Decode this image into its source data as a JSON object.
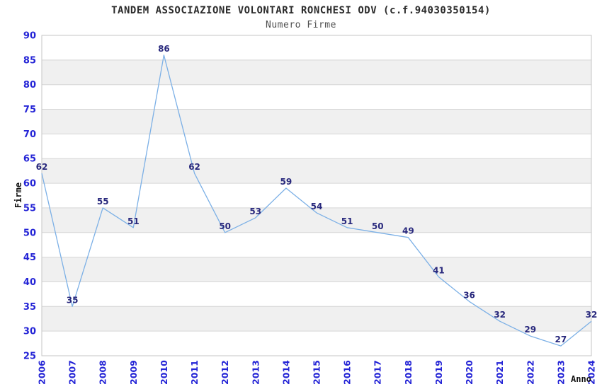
{
  "chart_data": {
    "type": "line",
    "title": "TANDEM ASSOCIAZIONE VOLONTARI RONCHESI ODV (c.f.94030350154)",
    "subtitle": "Numero Firme",
    "xlabel": "Anno",
    "ylabel": "Firme",
    "categories": [
      "2006",
      "2007",
      "2008",
      "2009",
      "2010",
      "2011",
      "2012",
      "2013",
      "2014",
      "2015",
      "2016",
      "2017",
      "2018",
      "2019",
      "2020",
      "2021",
      "2022",
      "2023",
      "2024"
    ],
    "values": [
      62,
      35,
      55,
      51,
      86,
      62,
      50,
      53,
      59,
      54,
      51,
      50,
      49,
      41,
      36,
      32,
      29,
      27,
      32
    ],
    "ylim": [
      25,
      90
    ],
    "ytick_step": 5,
    "yticks": [
      25,
      30,
      35,
      40,
      45,
      50,
      55,
      60,
      65,
      70,
      75,
      80,
      85,
      90
    ],
    "grid": "horizontal-only",
    "legend": "none",
    "data_labels": true,
    "band_fill_rule": "gray band between each gridline pair whose lower bound is a multiple of 10",
    "colors": {
      "line": "#7cb0e6",
      "tick_label": "#2424d6",
      "data_label": "#29297d",
      "band": "#f0f0f0",
      "gridline": "#d6d6d6",
      "border": "#c6c6c6",
      "title": "#2b2b2b",
      "subtitle": "#4f4f4f",
      "axis_title": "#111111",
      "background": "#ffffff"
    }
  }
}
